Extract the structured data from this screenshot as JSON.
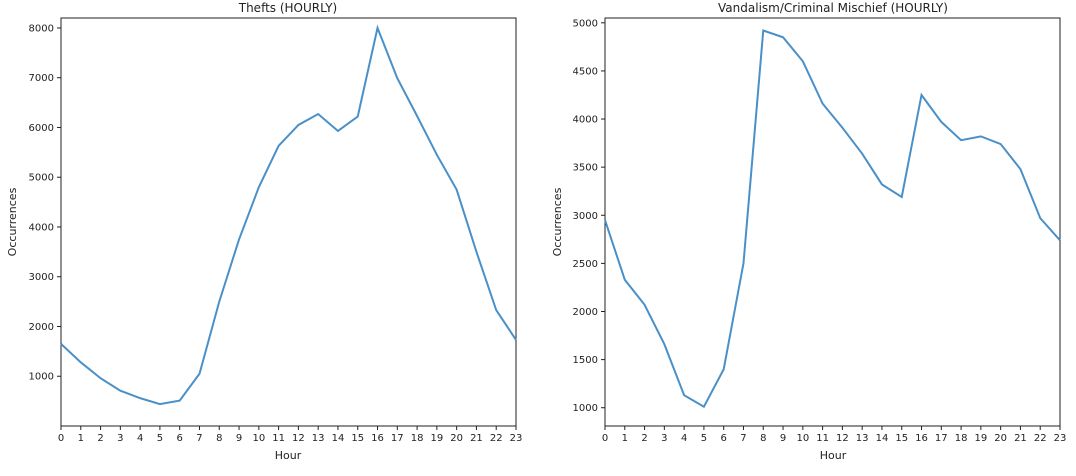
{
  "chart_data": [
    {
      "type": "line",
      "title": "Thefts (HOURLY)",
      "xlabel": "Hour",
      "ylabel": "Occurrences",
      "x": [
        0,
        1,
        2,
        3,
        4,
        5,
        6,
        7,
        8,
        9,
        10,
        11,
        12,
        13,
        14,
        15,
        16,
        17,
        18,
        19,
        20,
        21,
        22,
        23
      ],
      "series": [
        {
          "values": [
            1650,
            1280,
            960,
            710,
            560,
            440,
            510,
            1050,
            2500,
            3750,
            4800,
            5630,
            6050,
            6270,
            5930,
            6220,
            8000,
            6990,
            6230,
            5450,
            4750,
            3500,
            2330,
            1730
          ]
        }
      ],
      "xlim": [
        0,
        23
      ],
      "ylim": [
        0,
        8200
      ],
      "yticks": [
        1000,
        2000,
        3000,
        4000,
        5000,
        6000,
        7000,
        8000
      ],
      "color": "#4a90c8",
      "grid": false
    },
    {
      "type": "line",
      "title": "Vandalism/Criminal Mischief (HOURLY)",
      "xlabel": "Hour",
      "ylabel": "Occurrences",
      "x": [
        0,
        1,
        2,
        3,
        4,
        5,
        6,
        7,
        8,
        9,
        10,
        11,
        12,
        13,
        14,
        15,
        16,
        17,
        18,
        19,
        20,
        21,
        22,
        23
      ],
      "series": [
        {
          "values": [
            2950,
            2330,
            2070,
            1660,
            1130,
            1010,
            1400,
            2500,
            4920,
            4850,
            4600,
            4160,
            3910,
            3640,
            3320,
            3190,
            4250,
            3970,
            3780,
            3820,
            3740,
            3480,
            2970,
            2740
          ]
        }
      ],
      "xlim": [
        0,
        23
      ],
      "ylim": [
        810,
        5050
      ],
      "yticks": [
        1000,
        1500,
        2000,
        2500,
        3000,
        3500,
        4000,
        4500,
        5000
      ],
      "color": "#4a90c8",
      "grid": false
    }
  ]
}
